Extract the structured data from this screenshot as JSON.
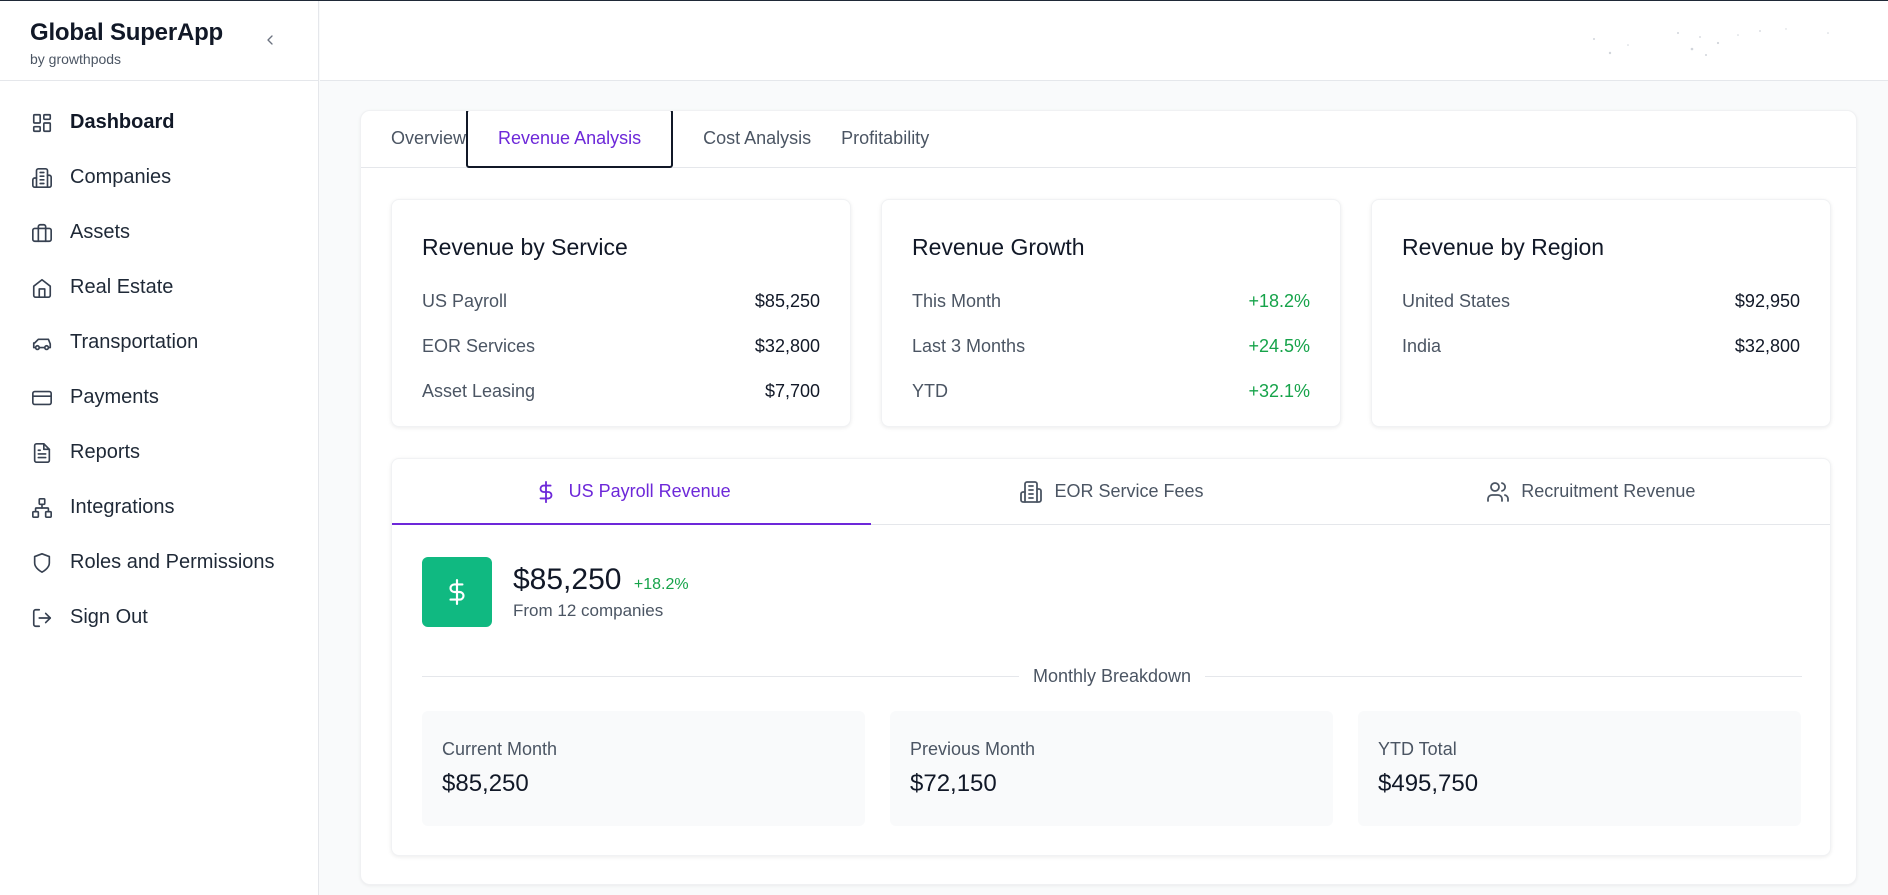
{
  "app": {
    "title": "Global SuperApp",
    "subtitle": "by growthpods"
  },
  "sidebar": {
    "items": [
      {
        "label": "Dashboard",
        "icon": "dashboard-icon",
        "active": true
      },
      {
        "label": "Companies",
        "icon": "building-icon"
      },
      {
        "label": "Assets",
        "icon": "briefcase-icon"
      },
      {
        "label": "Real Estate",
        "icon": "home-icon"
      },
      {
        "label": "Transportation",
        "icon": "car-icon"
      },
      {
        "label": "Payments",
        "icon": "credit-card-icon"
      },
      {
        "label": "Reports",
        "icon": "file-text-icon"
      },
      {
        "label": "Integrations",
        "icon": "network-icon"
      },
      {
        "label": "Roles and Permissions",
        "icon": "shield-icon"
      },
      {
        "label": "Sign Out",
        "icon": "sign-out-icon"
      }
    ]
  },
  "tabs": [
    {
      "label": "Overview"
    },
    {
      "label": "Revenue Analysis",
      "active": true
    },
    {
      "label": "Cost Analysis"
    },
    {
      "label": "Profitability"
    }
  ],
  "cards": {
    "service": {
      "title": "Revenue by Service",
      "rows": [
        {
          "label": "US Payroll",
          "value": "$85,250"
        },
        {
          "label": "EOR Services",
          "value": "$32,800"
        },
        {
          "label": "Asset Leasing",
          "value": "$7,700"
        }
      ]
    },
    "growth": {
      "title": "Revenue Growth",
      "rows": [
        {
          "label": "This Month",
          "value": "+18.2%"
        },
        {
          "label": "Last 3 Months",
          "value": "+24.5%"
        },
        {
          "label": "YTD",
          "value": "+32.1%"
        }
      ]
    },
    "region": {
      "title": "Revenue by Region",
      "rows": [
        {
          "label": "United States",
          "value": "$92,950"
        },
        {
          "label": "India",
          "value": "$32,800"
        }
      ]
    }
  },
  "panel": {
    "tabs": [
      {
        "label": "US Payroll Revenue",
        "icon": "dollar-icon",
        "active": true
      },
      {
        "label": "EOR Service Fees",
        "icon": "building-icon"
      },
      {
        "label": "Recruitment Revenue",
        "icon": "users-icon"
      }
    ],
    "stat": {
      "amount": "$85,250",
      "change": "+18.2%",
      "subtitle": "From 12 companies"
    },
    "divider_label": "Monthly Breakdown",
    "boxes": [
      {
        "label": "Current Month",
        "value": "$85,250"
      },
      {
        "label": "Previous Month",
        "value": "$72,150"
      },
      {
        "label": "YTD Total",
        "value": "$495,750"
      }
    ]
  },
  "colors": {
    "accent": "#6d28d9",
    "positive": "#16a34a",
    "stat_icon_bg": "#10b981"
  }
}
